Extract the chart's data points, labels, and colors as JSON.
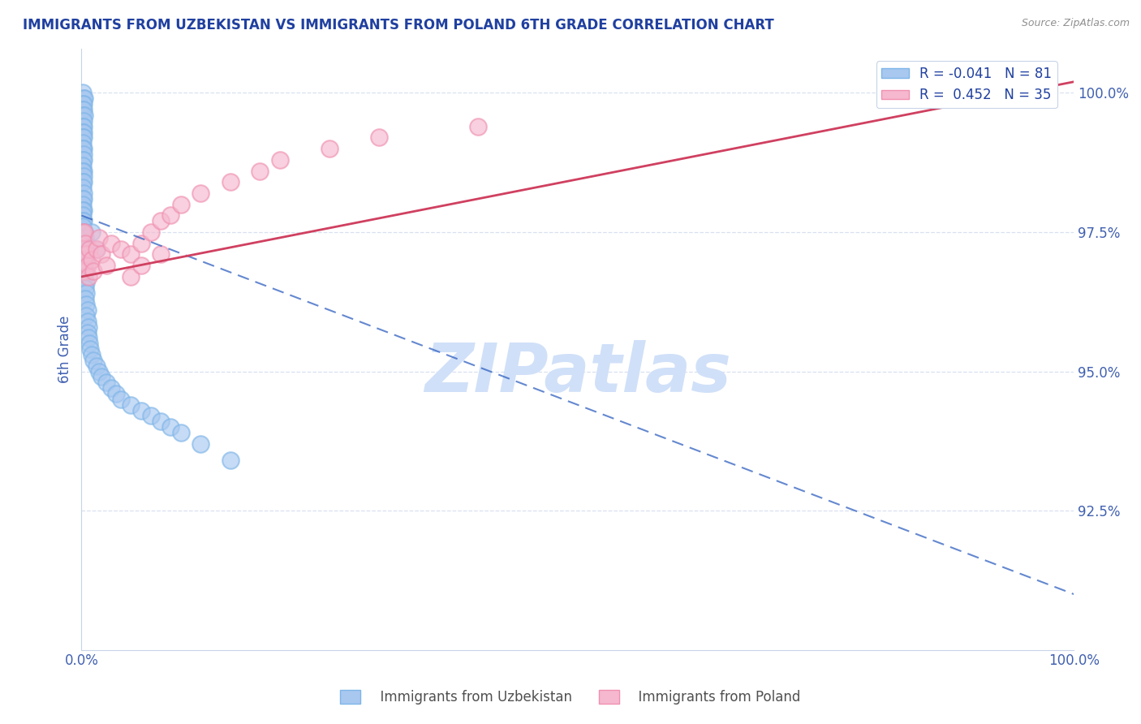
{
  "title": "IMMIGRANTS FROM UZBEKISTAN VS IMMIGRANTS FROM POLAND 6TH GRADE CORRELATION CHART",
  "source": "Source: ZipAtlas.com",
  "xlabel_bottom": "Immigrants from Uzbekistan",
  "xlabel_bottom2": "Immigrants from Poland",
  "ylabel": "6th Grade",
  "watermark": "ZIPatlas",
  "legend_blue_r": "-0.041",
  "legend_blue_n": "81",
  "legend_pink_r": "0.452",
  "legend_pink_n": "35",
  "xmin": 0.0,
  "xmax": 1.0,
  "ymin": 0.9,
  "ymax": 1.008,
  "yticks": [
    0.925,
    0.95,
    0.975,
    1.0
  ],
  "ytick_labels": [
    "92.5%",
    "95.0%",
    "97.5%",
    "100.0%"
  ],
  "xtick_labels": [
    "0.0%",
    "100.0%"
  ],
  "blue_color": "#A8C8F0",
  "pink_color": "#F5B8CE",
  "blue_scatter_edge": "#7EB5E8",
  "pink_scatter_edge": "#F090B0",
  "blue_line_color": "#3060C0",
  "pink_line_color": "#D04060",
  "title_color": "#2040A0",
  "axis_label_color": "#4060B0",
  "source_color": "#909090",
  "watermark_color": "#D0E0F8",
  "grid_color": "#D8E0F0",
  "blue_line_y_start": 0.978,
  "blue_line_y_end": 0.91,
  "pink_line_y_start": 0.967,
  "pink_line_y_end": 1.002,
  "blue_scatter_x": [
    0.001,
    0.002,
    0.003,
    0.001,
    0.002,
    0.001,
    0.002,
    0.001,
    0.003,
    0.002,
    0.001,
    0.002,
    0.001,
    0.002,
    0.001,
    0.002,
    0.001,
    0.002,
    0.001,
    0.002,
    0.001,
    0.002,
    0.001,
    0.002,
    0.001,
    0.002,
    0.001,
    0.002,
    0.001,
    0.002,
    0.001,
    0.002,
    0.001,
    0.002,
    0.001,
    0.001,
    0.001,
    0.002,
    0.001,
    0.002,
    0.003,
    0.004,
    0.003,
    0.004,
    0.003,
    0.004,
    0.003,
    0.004,
    0.003,
    0.005,
    0.004,
    0.005,
    0.004,
    0.005,
    0.006,
    0.005,
    0.006,
    0.007,
    0.006,
    0.007,
    0.008,
    0.009,
    0.01,
    0.012,
    0.015,
    0.018,
    0.02,
    0.025,
    0.03,
    0.035,
    0.04,
    0.05,
    0.06,
    0.07,
    0.08,
    0.09,
    0.1,
    0.12,
    0.15,
    0.01,
    0.015
  ],
  "blue_scatter_y": [
    1.0,
    0.999,
    0.999,
    0.998,
    0.998,
    0.997,
    0.997,
    0.996,
    0.996,
    0.995,
    0.994,
    0.994,
    0.993,
    0.993,
    0.992,
    0.992,
    0.991,
    0.99,
    0.99,
    0.989,
    0.988,
    0.988,
    0.987,
    0.986,
    0.986,
    0.985,
    0.984,
    0.984,
    0.983,
    0.982,
    0.981,
    0.981,
    0.98,
    0.979,
    0.979,
    0.978,
    0.977,
    0.977,
    0.976,
    0.975,
    0.975,
    0.974,
    0.973,
    0.972,
    0.971,
    0.97,
    0.969,
    0.968,
    0.967,
    0.966,
    0.965,
    0.964,
    0.963,
    0.962,
    0.961,
    0.96,
    0.959,
    0.958,
    0.957,
    0.956,
    0.955,
    0.954,
    0.953,
    0.952,
    0.951,
    0.95,
    0.949,
    0.948,
    0.947,
    0.946,
    0.945,
    0.944,
    0.943,
    0.942,
    0.941,
    0.94,
    0.939,
    0.937,
    0.934,
    0.975,
    0.972
  ],
  "pink_scatter_x": [
    0.001,
    0.002,
    0.002,
    0.003,
    0.003,
    0.004,
    0.005,
    0.006,
    0.007,
    0.008,
    0.01,
    0.012,
    0.015,
    0.018,
    0.02,
    0.025,
    0.03,
    0.04,
    0.05,
    0.06,
    0.07,
    0.08,
    0.09,
    0.1,
    0.12,
    0.15,
    0.18,
    0.2,
    0.25,
    0.3,
    0.05,
    0.06,
    0.08,
    0.9,
    0.4
  ],
  "pink_scatter_y": [
    0.975,
    0.972,
    0.97,
    0.968,
    0.975,
    0.973,
    0.971,
    0.969,
    0.967,
    0.972,
    0.97,
    0.968,
    0.972,
    0.974,
    0.971,
    0.969,
    0.973,
    0.972,
    0.971,
    0.973,
    0.975,
    0.977,
    0.978,
    0.98,
    0.982,
    0.984,
    0.986,
    0.988,
    0.99,
    0.992,
    0.967,
    0.969,
    0.971,
    1.001,
    0.994
  ]
}
